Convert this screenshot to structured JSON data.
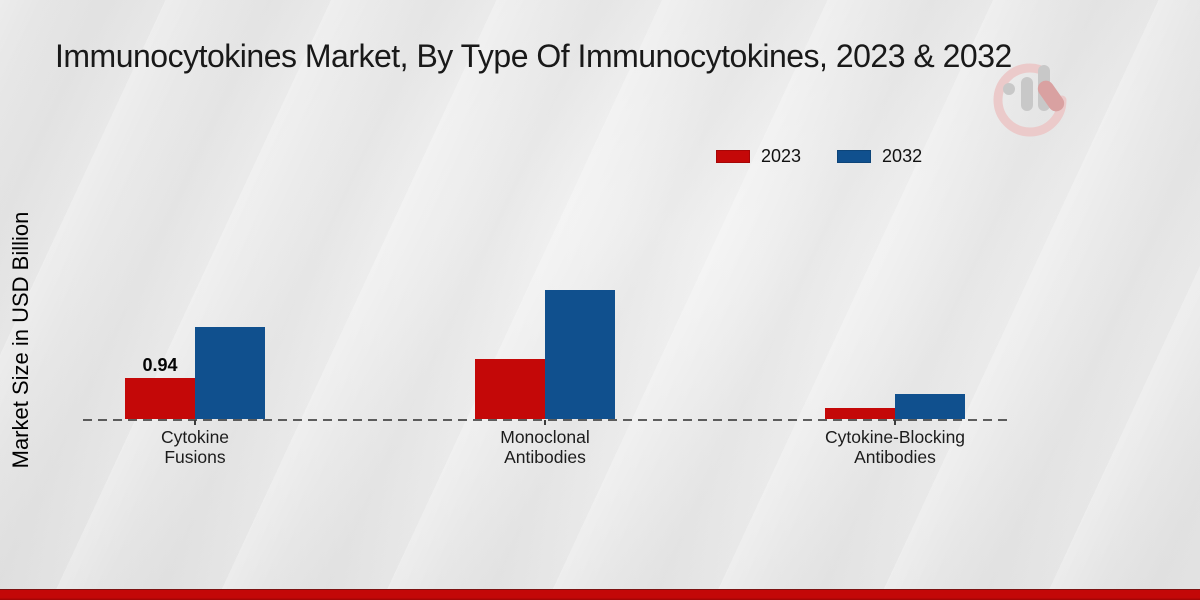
{
  "chart_data": {
    "type": "bar",
    "title": "Immunocytokines Market, By Type Of Immunocytokines, 2023 & 2032",
    "ylabel": "Market Size in USD Billion",
    "xlabel": "",
    "value_unit": "USD Billion",
    "categories": [
      "Cytokine\nFusions",
      "Monoclonal\nAntibodies",
      "Cytokine-Blocking\nAntibodies"
    ],
    "series": [
      {
        "name": "2023",
        "color": "#c40808",
        "values": [
          0.94,
          1.37,
          0.24
        ],
        "data_labels": [
          "0.94",
          "",
          ""
        ]
      },
      {
        "name": "2032",
        "color": "#10508e",
        "values": [
          2.1,
          2.94,
          0.56
        ],
        "data_labels": [
          "",
          "",
          ""
        ]
      }
    ],
    "ylim": [
      0,
      3.3
    ],
    "grid": false,
    "legend_position": "top-right",
    "zero_line": "dashed horizontal baseline"
  },
  "footer": {
    "band_color": "#c30808"
  }
}
